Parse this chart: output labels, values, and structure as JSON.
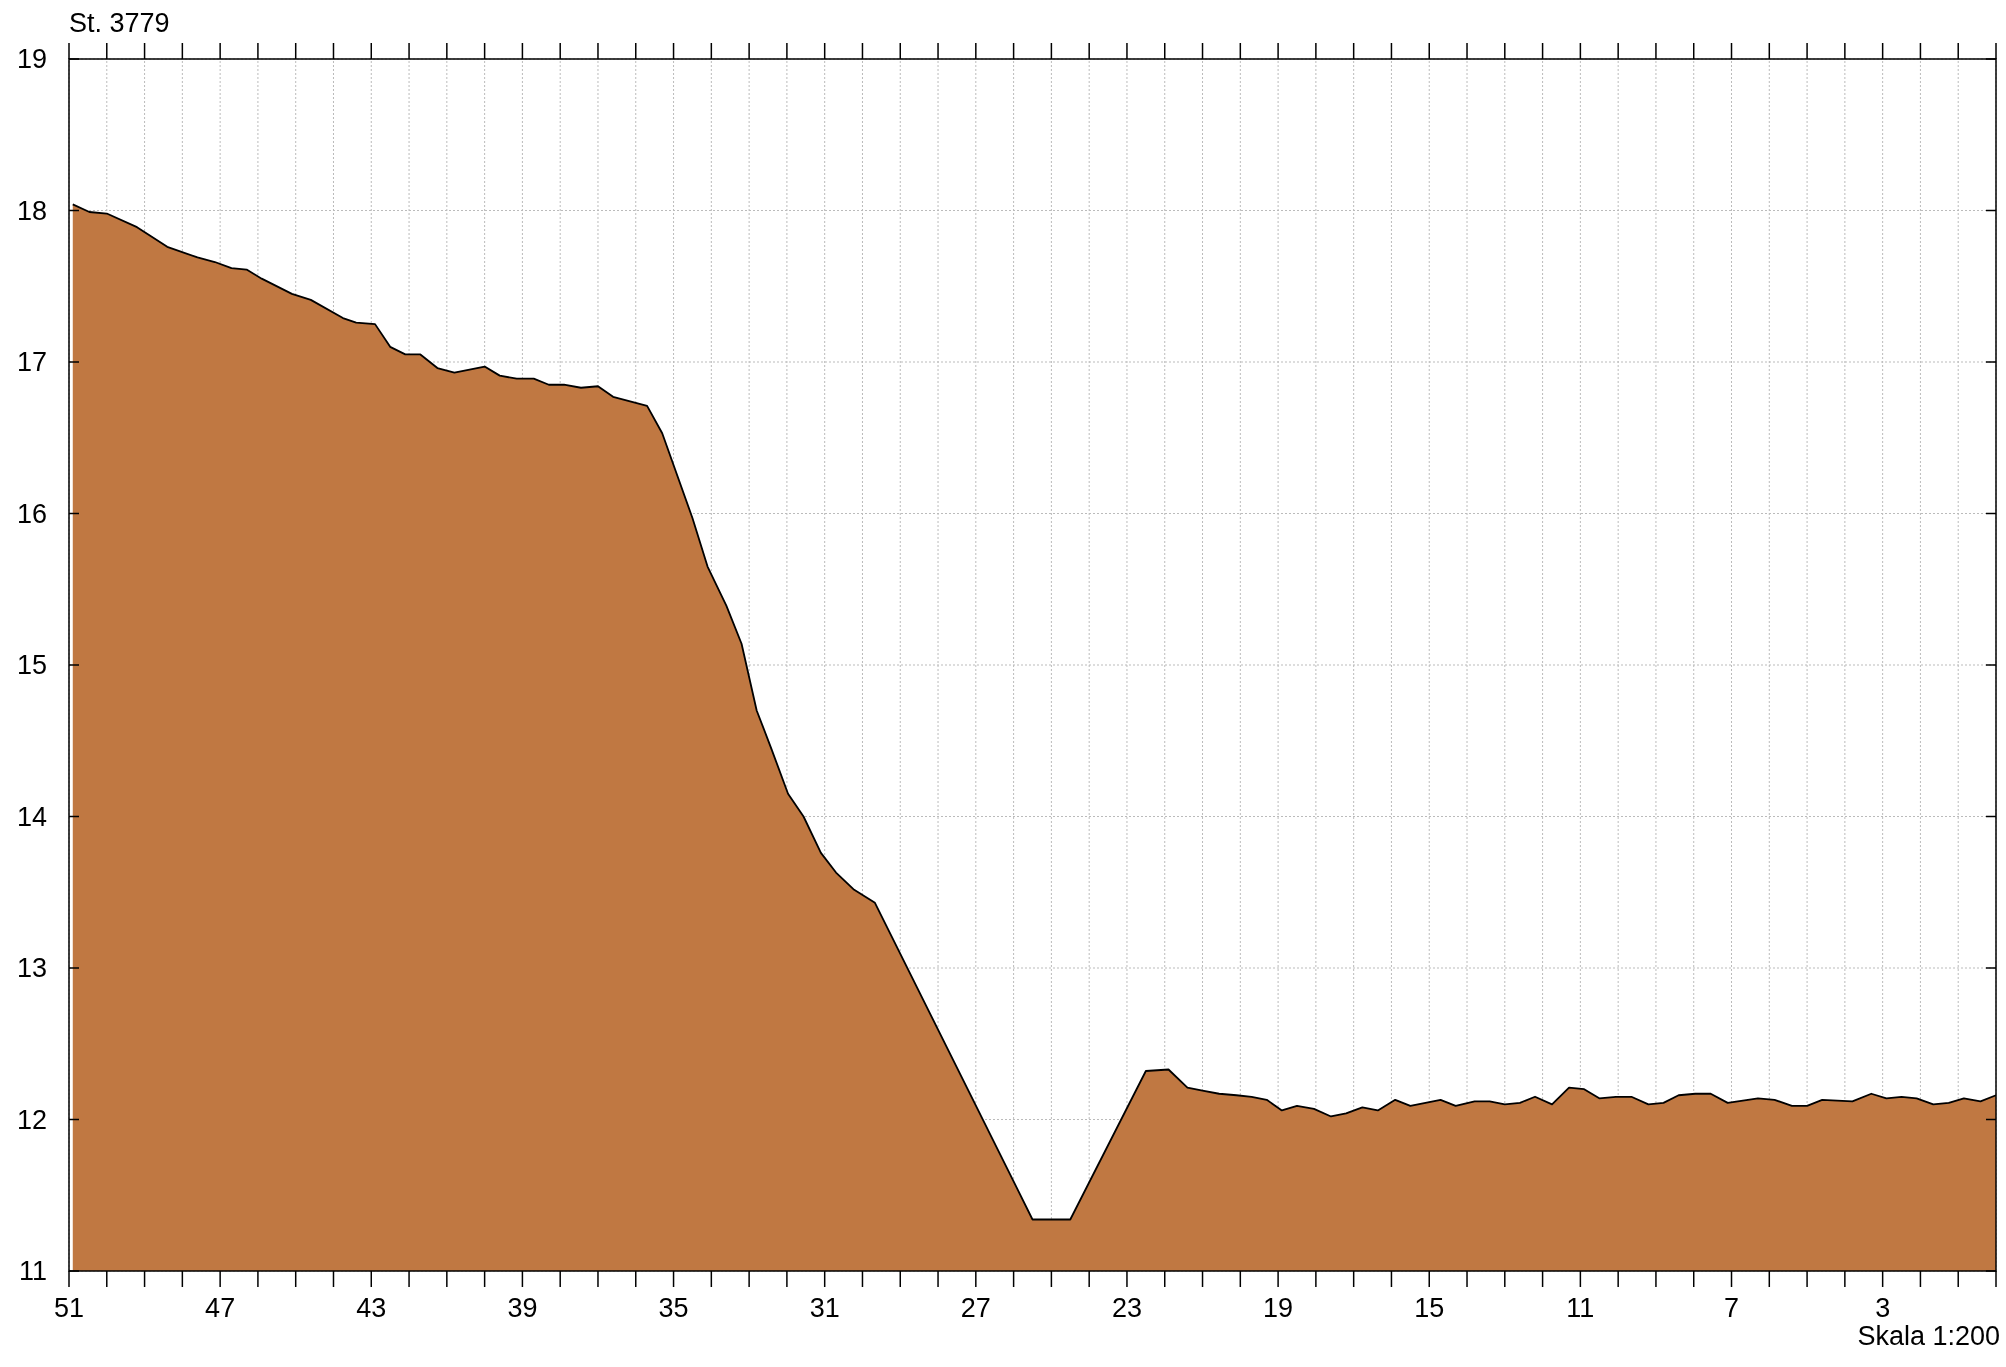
{
  "chart_data": {
    "type": "area",
    "annotations": [
      "St. 3779",
      "Skala 1:200"
    ],
    "x": [
      50.9,
      50.46,
      50.0,
      49.2,
      48.83,
      48.4,
      47.6,
      47.14,
      46.7,
      46.3,
      45.9,
      45.1,
      44.6,
      43.75,
      43.4,
      42.9,
      42.5,
      42.1,
      41.7,
      41.25,
      40.8,
      40.0,
      39.6,
      39.15,
      38.7,
      38.3,
      37.9,
      37.45,
      37.0,
      36.6,
      35.7,
      35.3,
      34.5,
      34.1,
      33.6,
      33.2,
      32.8,
      32.4,
      31.97,
      31.56,
      31.1,
      30.7,
      30.24,
      29.67,
      25.5,
      24.5,
      22.5,
      21.9,
      21.4,
      21.0,
      20.56,
      20.1,
      19.7,
      19.3,
      18.9,
      18.5,
      18.05,
      17.6,
      17.2,
      16.77,
      16.36,
      15.9,
      15.5,
      14.7,
      14.3,
      13.8,
      13.4,
      13.0,
      12.6,
      12.2,
      11.75,
      11.3,
      10.9,
      10.5,
      10.06,
      9.65,
      9.2,
      8.8,
      8.4,
      7.96,
      7.55,
      7.1,
      6.3,
      5.86,
      5.4,
      5.0,
      4.6,
      3.8,
      3.3,
      2.9,
      2.5,
      2.1,
      1.66,
      1.25,
      0.85,
      0.41,
      0.0
    ],
    "series": [
      {
        "color": "#c07842",
        "values": [
          18.04,
          17.99,
          17.98,
          17.89,
          17.83,
          17.76,
          17.69,
          17.66,
          17.62,
          17.61,
          17.55,
          17.45,
          17.41,
          17.29,
          17.26,
          17.25,
          17.1,
          17.05,
          17.05,
          16.96,
          16.93,
          16.97,
          16.91,
          16.89,
          16.89,
          16.85,
          16.85,
          16.83,
          16.84,
          16.77,
          16.71,
          16.53,
          15.97,
          15.65,
          15.39,
          15.14,
          14.7,
          14.44,
          14.15,
          14.0,
          13.76,
          13.63,
          13.52,
          13.43,
          11.34,
          11.34,
          12.32,
          12.33,
          12.21,
          12.19,
          12.17,
          12.16,
          12.15,
          12.13,
          12.06,
          12.09,
          12.07,
          12.02,
          12.04,
          12.08,
          12.06,
          12.13,
          12.09,
          12.13,
          12.09,
          12.12,
          12.12,
          12.1,
          12.11,
          12.15,
          12.1,
          12.21,
          12.2,
          12.14,
          12.15,
          12.15,
          12.1,
          12.11,
          12.16,
          12.17,
          12.17,
          12.11,
          12.14,
          12.13,
          12.09,
          12.09,
          12.13,
          12.12,
          12.17,
          12.14,
          12.15,
          12.14,
          12.1,
          12.11,
          12.14,
          12.12,
          12.16
        ]
      }
    ],
    "xlim": [
      51,
      0
    ],
    "ylim": [
      11,
      19
    ],
    "xticks": [
      51,
      {
        "value": 50,
        "label": null
      },
      {
        "value": 49,
        "label": null
      },
      {
        "value": 48,
        "label": null
      },
      47,
      {
        "value": 46,
        "label": null
      },
      {
        "value": 45,
        "label": null
      },
      {
        "value": 44,
        "label": null
      },
      43,
      {
        "value": 42,
        "label": null
      },
      {
        "value": 41,
        "label": null
      },
      {
        "value": 40,
        "label": null
      },
      39,
      {
        "value": 38,
        "label": null
      },
      {
        "value": 37,
        "label": null
      },
      {
        "value": 36,
        "label": null
      },
      35,
      {
        "value": 34,
        "label": null
      },
      {
        "value": 33,
        "label": null
      },
      {
        "value": 32,
        "label": null
      },
      31,
      {
        "value": 30,
        "label": null
      },
      {
        "value": 29,
        "label": null
      },
      {
        "value": 28,
        "label": null
      },
      27,
      {
        "value": 26,
        "label": null
      },
      {
        "value": 25,
        "label": null
      },
      {
        "value": 24,
        "label": null
      },
      23,
      {
        "value": 22,
        "label": null
      },
      {
        "value": 21,
        "label": null
      },
      {
        "value": 20,
        "label": null
      },
      19,
      {
        "value": 18,
        "label": null
      },
      {
        "value": 17,
        "label": null
      },
      {
        "value": 16,
        "label": null
      },
      15,
      {
        "value": 14,
        "label": null
      },
      {
        "value": 13,
        "label": null
      },
      {
        "value": 12,
        "label": null
      },
      11,
      {
        "value": 10,
        "label": null
      },
      {
        "value": 9,
        "label": null
      },
      {
        "value": 8,
        "label": null
      },
      7,
      {
        "value": 6,
        "label": null
      },
      {
        "value": 5,
        "label": null
      },
      {
        "value": 4,
        "label": null
      },
      3,
      {
        "value": 2,
        "label": null
      },
      {
        "value": 1,
        "label": null
      },
      {
        "value": 0,
        "label": null
      }
    ],
    "yticks": [
      11,
      12,
      13,
      14,
      15,
      16,
      17,
      18,
      19
    ],
    "grid": true
  }
}
